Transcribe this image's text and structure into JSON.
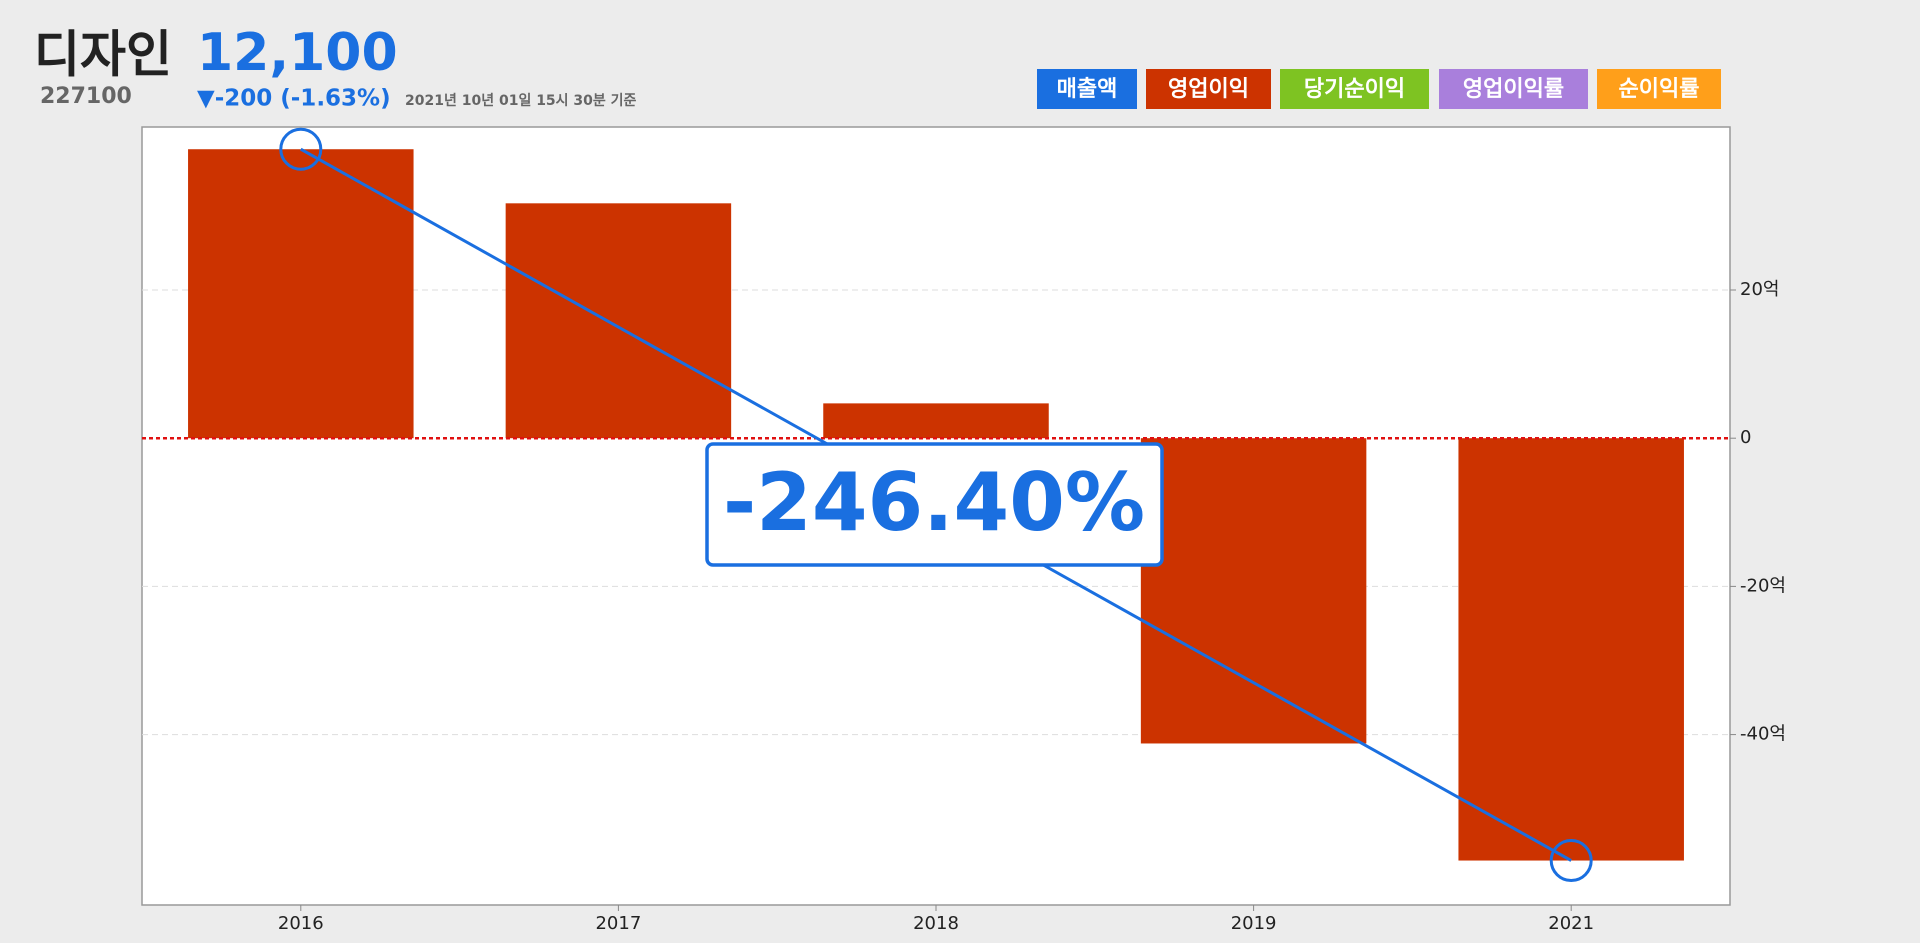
{
  "chart_data": {
    "type": "bar",
    "title": "디자인",
    "price": "12,100",
    "code": "227100",
    "change": "▼-200 (-1.63%)",
    "timestamp": "2021년 10년 01일 15시 30분 기준",
    "legend_buttons": [
      {
        "label": "매출액",
        "color": "#1a6fe0"
      },
      {
        "label": "영업이익",
        "color": "#cc3300"
      },
      {
        "label": "당기순이익",
        "color": "#7ec322"
      },
      {
        "label": "영업이익률",
        "color": "#a97fdc"
      },
      {
        "label": "순이익률",
        "color": "#ff9f1a"
      }
    ],
    "categories": [
      "2016",
      "2017",
      "2018",
      "2019",
      "2021"
    ],
    "values": [
      39,
      31.7,
      4.7,
      -41.2,
      -57
    ],
    "color": "#cc3300",
    "ylim": [
      -63,
      42
    ],
    "yticks": [
      {
        "value": -40,
        "label": "-40억"
      },
      {
        "value": -20,
        "label": "-20억"
      },
      0,
      {
        "value": 20,
        "label": "20억"
      }
    ],
    "grid": true,
    "zero_line_color": "#e01010",
    "annotation": "-246.40%",
    "trend_color": "#1a6fe0"
  }
}
